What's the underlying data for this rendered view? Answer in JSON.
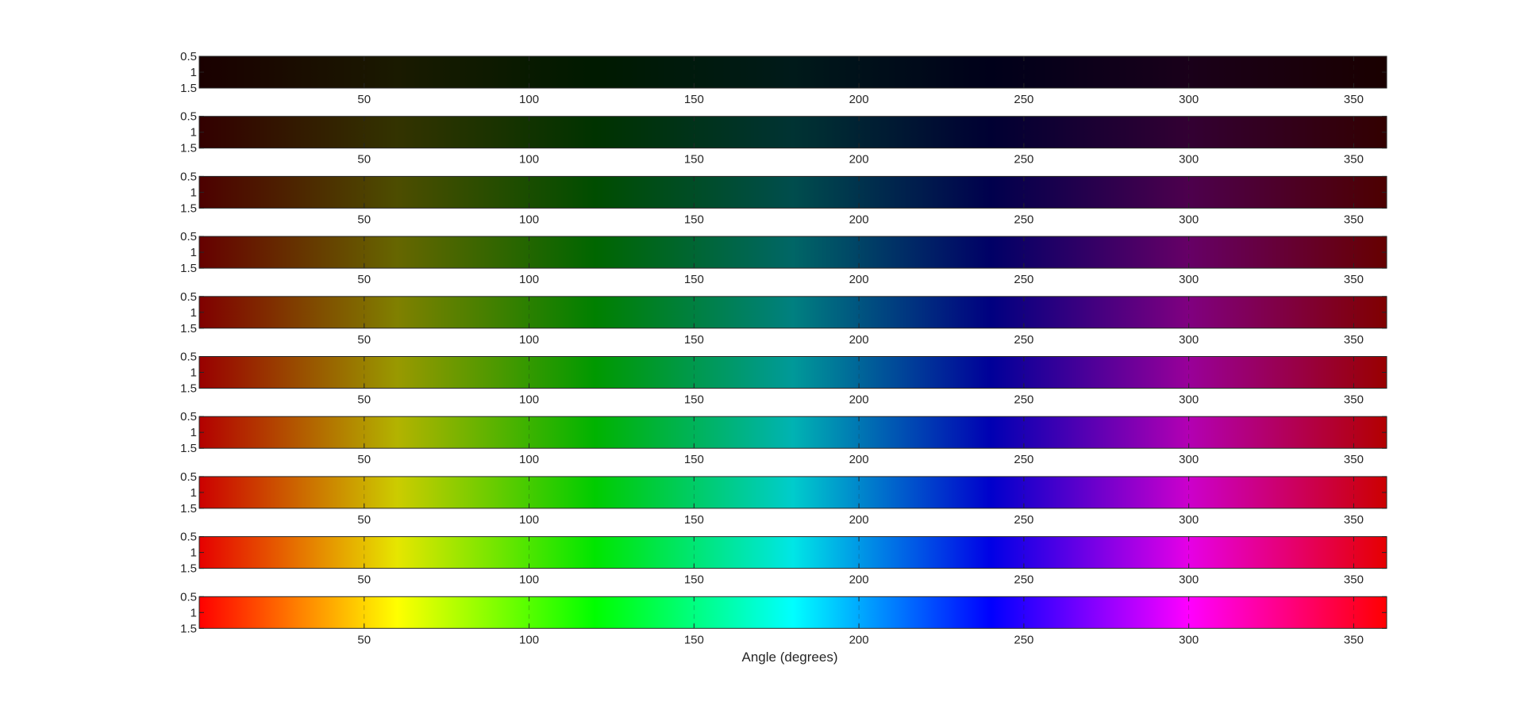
{
  "chart_data": {
    "type": "heatmap",
    "description_colormap": "hue",
    "xlabel": "Angle (degrees)",
    "xlim": [
      0,
      360
    ],
    "ylim": [
      0.5,
      1.5
    ],
    "x_ticks": [
      50,
      100,
      150,
      200,
      250,
      300,
      350
    ],
    "y_ticks": [
      0.5,
      1,
      1.5
    ],
    "x_tick_labels": [
      "50",
      "100",
      "150",
      "200",
      "250",
      "300",
      "350"
    ],
    "y_tick_labels": [
      "0.5",
      "1",
      "1.5"
    ],
    "grid": true,
    "panels": [
      {
        "brightness": 0.1
      },
      {
        "brightness": 0.2
      },
      {
        "brightness": 0.3
      },
      {
        "brightness": 0.4
      },
      {
        "brightness": 0.5
      },
      {
        "brightness": 0.6
      },
      {
        "brightness": 0.7
      },
      {
        "brightness": 0.8
      },
      {
        "brightness": 0.9
      },
      {
        "brightness": 1.0
      }
    ]
  }
}
